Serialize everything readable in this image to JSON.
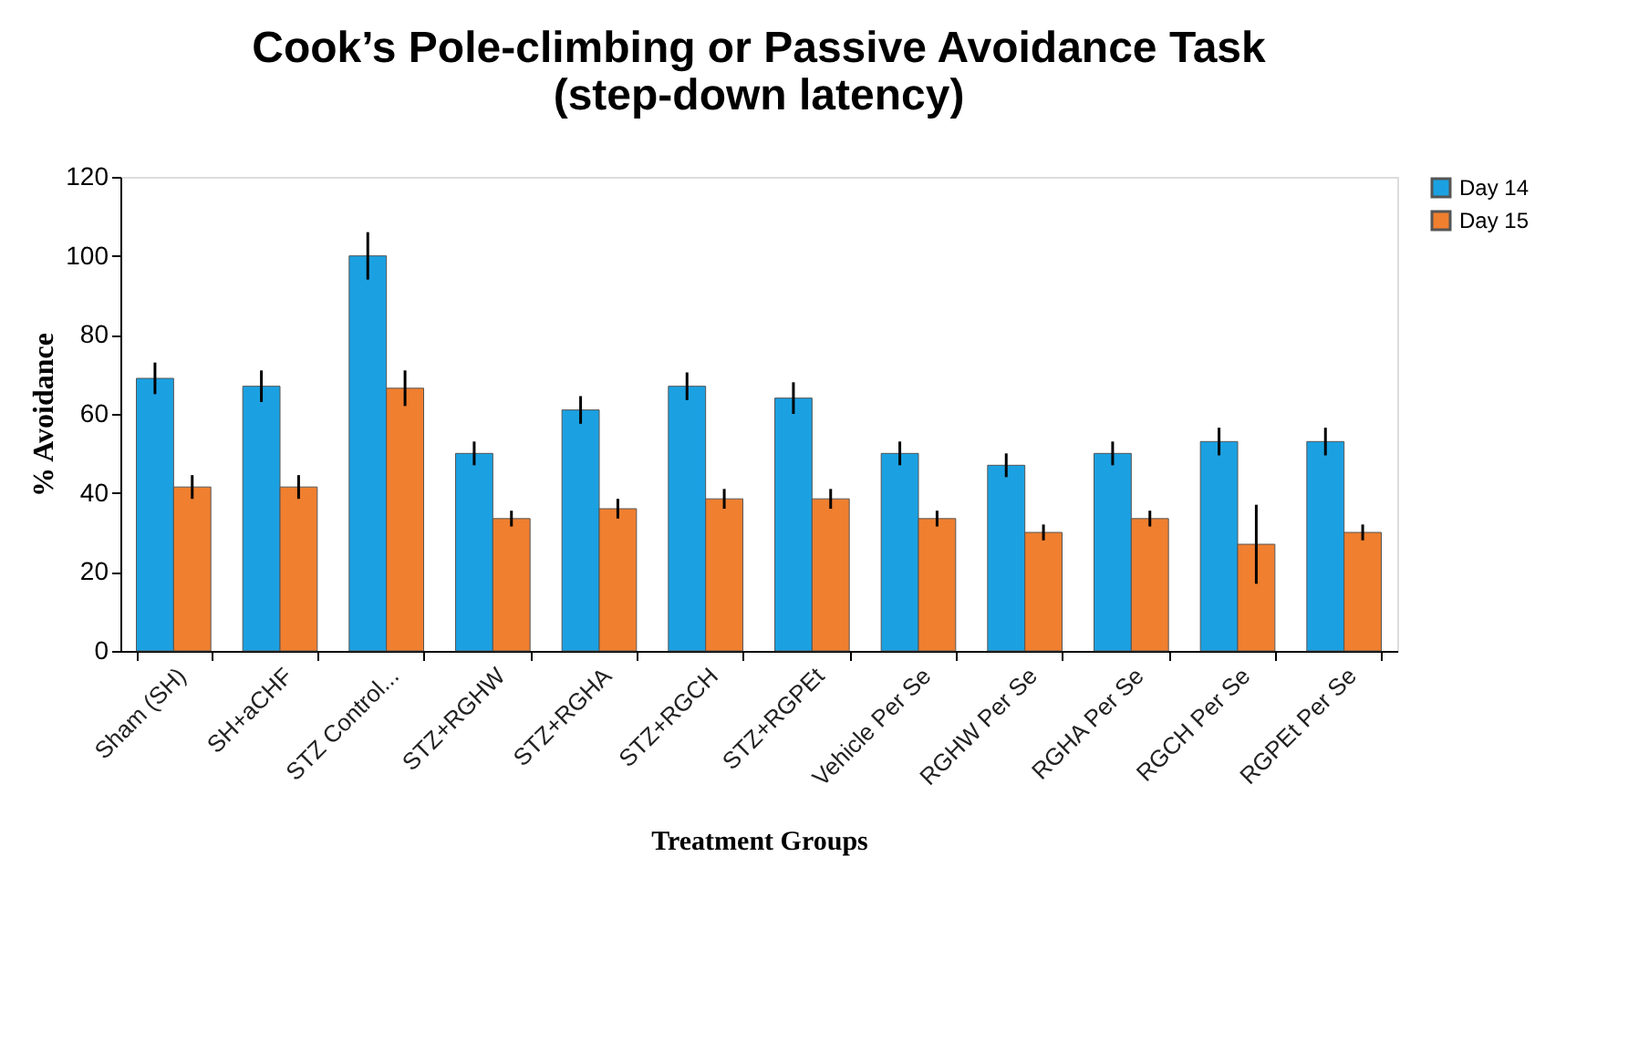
{
  "chart_data": {
    "type": "bar",
    "title": [
      "Cook’s Pole-climbing or Passive Avoidance Task",
      "(step-down latency)"
    ],
    "xlabel": "Treatment Groups",
    "ylabel": "% Avoidance",
    "categories": [
      "Sham (SH)",
      "SH+aCHF",
      "STZ Control...",
      "STZ+RGHW",
      "STZ+RGHA",
      "STZ+RGCH",
      "STZ+RGPEt",
      "Vehicle Per Se",
      "RGHW Per Se",
      "RGHA Per Se",
      "RGCH Per Se",
      "RGPEt Per Se"
    ],
    "series": [
      {
        "name": "Day 14",
        "color": "#1ba1e2",
        "values": [
          69,
          67,
          100,
          50,
          61,
          67,
          64,
          50,
          47,
          50,
          53,
          53
        ],
        "errors": [
          4,
          4,
          6,
          3,
          3.5,
          3.5,
          4,
          3,
          3,
          3,
          3.5,
          3.5
        ]
      },
      {
        "name": "Day 15",
        "color": "#f07f2f",
        "values": [
          41.5,
          41.5,
          66.5,
          33.5,
          36,
          38.5,
          38.5,
          33.5,
          30,
          33.5,
          27,
          30
        ],
        "errors": [
          3,
          3,
          4.5,
          2,
          2.5,
          2.5,
          2.5,
          2,
          2,
          2,
          10,
          2
        ]
      }
    ],
    "ylim": [
      0,
      120
    ],
    "yticks": [
      0,
      20,
      40,
      60,
      80,
      100,
      120
    ],
    "grid": false,
    "legend": "right"
  }
}
